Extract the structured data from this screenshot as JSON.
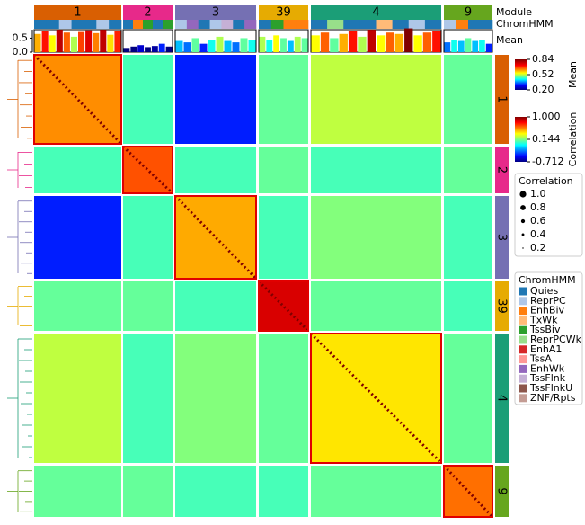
{
  "chart_data": {
    "type": "heatmap",
    "module_label": "Module",
    "chromhmm_label": "ChromHMM",
    "mean_label": "Mean",
    "modules": [
      {
        "name": "1",
        "color": "#d95f02"
      },
      {
        "name": "2",
        "color": "#e7298a"
      },
      {
        "name": "3",
        "color": "#7570b3"
      },
      {
        "name": "39",
        "color": "#e6ab02"
      },
      {
        "name": "4",
        "color": "#1b9e77"
      },
      {
        "name": "9",
        "color": "#66a61e"
      }
    ],
    "block_corr": [
      [
        0.55,
        0.05,
        -0.45,
        0.1,
        0.25,
        0.1
      ],
      [
        0.05,
        0.65,
        0.05,
        0.1,
        0.05,
        0.1
      ],
      [
        -0.45,
        0.05,
        0.5,
        0.05,
        0.15,
        0.05
      ],
      [
        0.1,
        0.1,
        0.05,
        0.85,
        0.1,
        0.05
      ],
      [
        0.25,
        0.05,
        0.15,
        0.1,
        0.4,
        0.1
      ],
      [
        0.1,
        0.1,
        0.05,
        0.05,
        0.1,
        0.6
      ]
    ],
    "clim": [
      -0.712,
      1
    ],
    "cticks": [
      {
        "value": 1,
        "label": "1.000"
      },
      0.144,
      -0.712
    ],
    "clabel": "Correlation",
    "mean_lim": [
      0.2,
      0.84
    ],
    "mean_ticks": [
      0.84,
      0.52,
      {
        "value": 0.2,
        "label": "0.20"
      }
    ],
    "mean_ylim": [
      0,
      0.9
    ],
    "mean_axis_ticks": [
      0.5,
      {
        "value": 0,
        "label": "0.0"
      }
    ],
    "mean_values": [
      [
        0.65,
        0.75,
        0.6,
        0.8,
        0.7,
        0.55,
        0.72,
        0.78,
        0.68,
        0.8,
        0.62,
        0.74
      ],
      [
        0.15,
        0.2,
        0.25,
        0.18,
        0.22,
        0.3,
        0.2
      ],
      [
        0.4,
        0.35,
        0.5,
        0.3,
        0.45,
        0.55,
        0.4,
        0.35,
        0.5,
        0.45
      ],
      [
        0.55,
        0.45,
        0.6,
        0.5,
        0.4,
        0.55,
        0.5
      ],
      [
        0.6,
        0.7,
        0.5,
        0.65,
        0.75,
        0.55,
        0.8,
        0.6,
        0.7,
        0.65,
        0.85,
        0.6,
        0.7,
        0.75
      ],
      [
        0.35,
        0.45,
        0.4,
        0.5,
        0.4,
        0.45,
        0.3
      ]
    ],
    "chromhmm": [
      [
        "Quies",
        "Quies",
        "ReprPC",
        "Quies",
        "Quies",
        "ReprPC",
        "Quies"
      ],
      [
        "Quies",
        "EnhBiv",
        "TssBiv",
        "Quies",
        "TssBiv"
      ],
      [
        "ReprPC",
        "EnhWk",
        "Quies",
        "ReprPC",
        "TssFlnk",
        "Quies",
        "EnhWk"
      ],
      [
        "Quies",
        "TssBiv",
        "EnhBiv",
        "EnhBiv"
      ],
      [
        "Quies",
        "ReprPCWk",
        "Quies",
        "Quies",
        "TxWk",
        "Quies",
        "ReprPC",
        "Quies"
      ],
      [
        "ReprPC",
        "EnhBiv",
        "Quies",
        "Quies"
      ]
    ],
    "size_legend": {
      "title": "Correlation",
      "values": [
        {
          "value": 1,
          "label": "1.0"
        },
        0.8,
        0.6,
        0.4,
        0.2
      ]
    },
    "chromhmm_legend": {
      "title": "ChromHMM",
      "states": [
        {
          "name": "Quies",
          "color": "#1f77b4"
        },
        {
          "name": "ReprPC",
          "color": "#aec7e8"
        },
        {
          "name": "EnhBiv",
          "color": "#ff7f0e"
        },
        {
          "name": "TxWk",
          "color": "#ffbb78"
        },
        {
          "name": "TssBiv",
          "color": "#2ca02c"
        },
        {
          "name": "ReprPCWk",
          "color": "#98df8a"
        },
        {
          "name": "EnhA1",
          "color": "#d62728"
        },
        {
          "name": "TssA",
          "color": "#ff9896"
        },
        {
          "name": "EnhWk",
          "color": "#9467bd"
        },
        {
          "name": "TssFlnk",
          "color": "#c5b0d5"
        },
        {
          "name": "TssFlnkU",
          "color": "#8c564b"
        },
        {
          "name": "ZNF/Rpts",
          "color": "#c49c94"
        }
      ]
    }
  }
}
